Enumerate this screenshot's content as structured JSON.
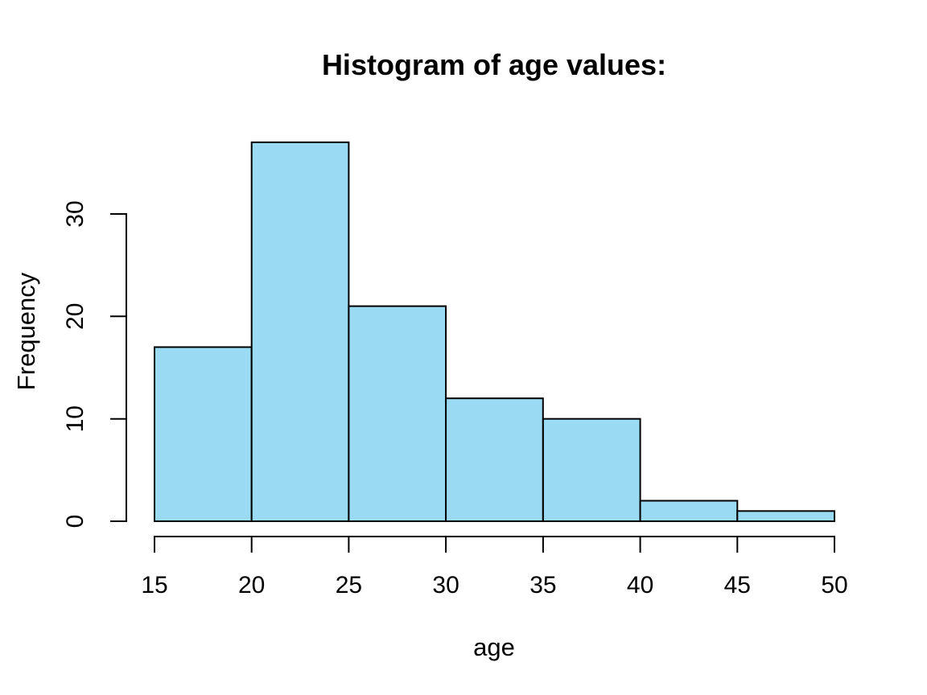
{
  "figure": {
    "title": "Histogram of age values:",
    "xlabel": "age",
    "ylabel": "Frequency"
  },
  "chart_data": {
    "type": "bar",
    "subtype": "histogram",
    "title": "Histogram of age values:",
    "xlabel": "age",
    "ylabel": "Frequency",
    "bin_edges": [
      15,
      20,
      25,
      30,
      35,
      40,
      45,
      50
    ],
    "counts": [
      17,
      37,
      21,
      12,
      10,
      2,
      1
    ],
    "x_ticks": [
      15,
      20,
      25,
      30,
      35,
      40,
      45,
      50
    ],
    "x_tick_labels": [
      "15",
      "20",
      "25",
      "30",
      "35",
      "40",
      "45",
      "50"
    ],
    "y_ticks": [
      0,
      10,
      20,
      30
    ],
    "y_tick_labels": [
      "0",
      "10",
      "20",
      "30"
    ],
    "xlim": [
      15,
      50
    ],
    "ylim": [
      0,
      37
    ],
    "grid": false,
    "legend": null,
    "colors": {
      "bar_fill": "#9ADAF2",
      "bar_stroke": "#000000",
      "axis": "#000000",
      "text": "#000000",
      "background": "#FFFFFF"
    }
  }
}
